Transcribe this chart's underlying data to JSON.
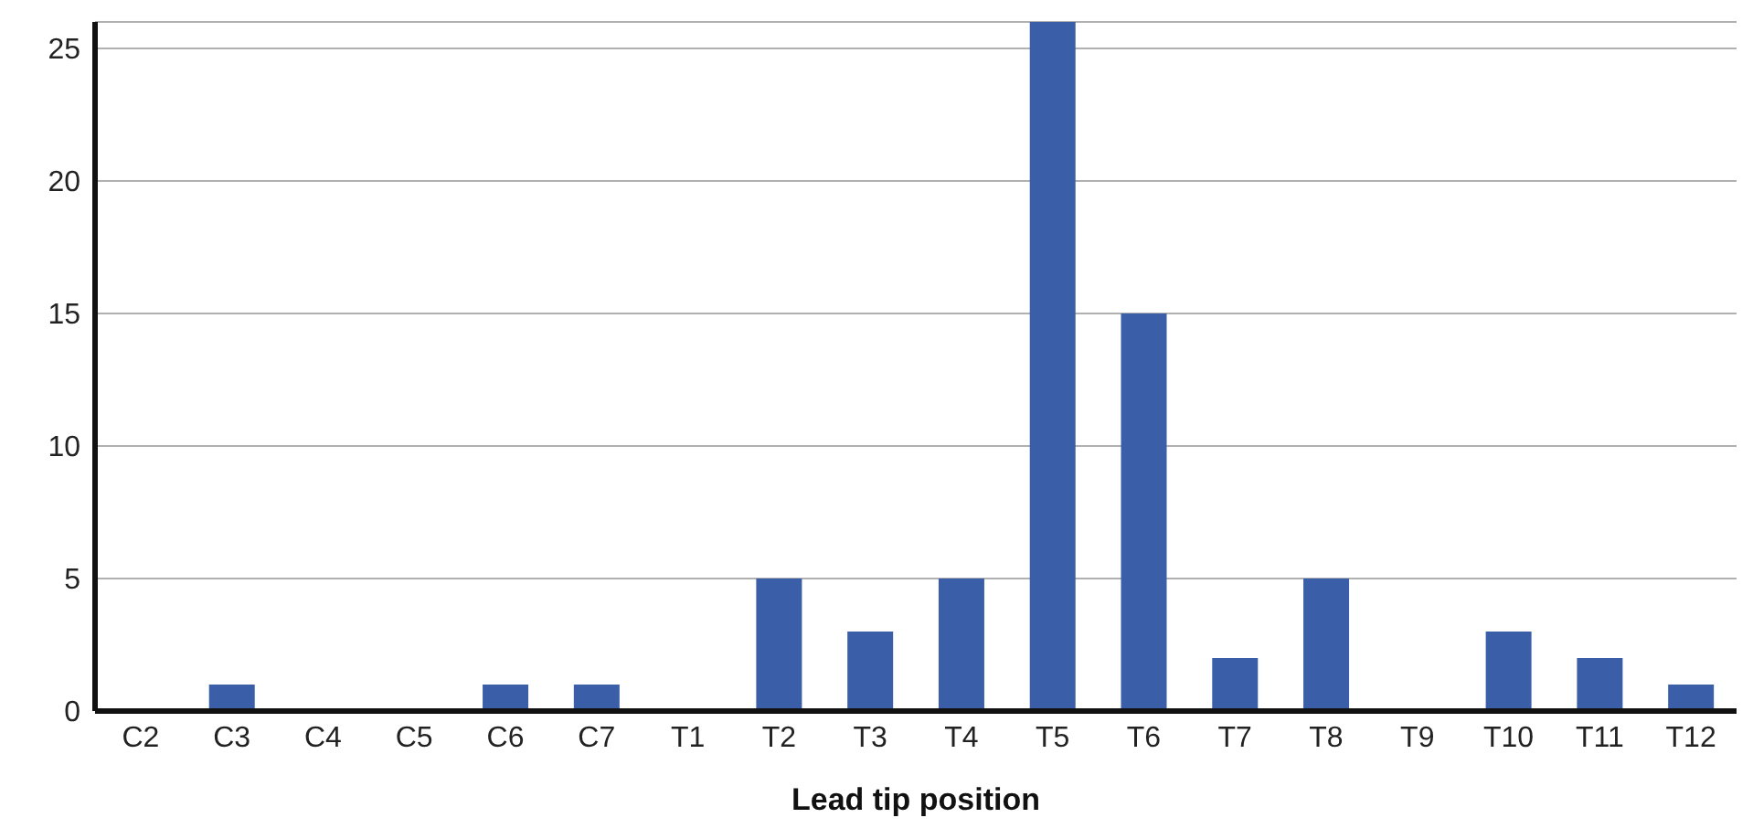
{
  "chart_data": {
    "type": "bar",
    "xlabel": "Lead tip position",
    "categories": [
      "C2",
      "C3",
      "C4",
      "C5",
      "C6",
      "C7",
      "T1",
      "T2",
      "T3",
      "T4",
      "T5",
      "T6",
      "T7",
      "T8",
      "T9",
      "T10",
      "T11",
      "T12"
    ],
    "values": [
      0,
      1,
      0,
      0,
      1,
      1,
      0,
      5,
      3,
      5,
      26,
      15,
      2,
      5,
      0,
      3,
      2,
      1
    ],
    "color": "#3a5fa8",
    "ylim": [
      0,
      26
    ],
    "yticks": [
      0,
      5,
      10,
      15,
      20,
      25
    ],
    "grid": "y"
  }
}
